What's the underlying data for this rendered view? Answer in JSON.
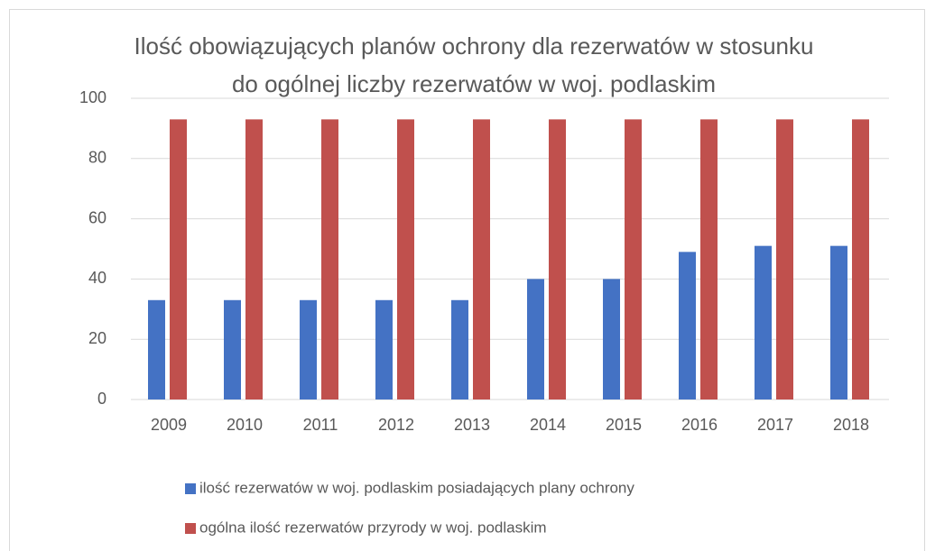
{
  "chart_data": {
    "type": "bar",
    "title": "Ilość obowiązujących planów ochrony dla rezerwatów w stosunku do ogólnej liczby rezerwatów w woj. podlaskim",
    "categories": [
      "2009",
      "2010",
      "2011",
      "2012",
      "2013",
      "2014",
      "2015",
      "2016",
      "2017",
      "2018"
    ],
    "series": [
      {
        "name": "ilość rezerwatów w woj. podlaskim posiadających plany ochrony",
        "color": "#4472c4",
        "values": [
          33,
          33,
          33,
          33,
          33,
          40,
          40,
          49,
          51,
          51
        ]
      },
      {
        "name": "ogólna ilość rezerwatów przyrody w woj. podlaskim",
        "color": "#c0504d",
        "values": [
          93,
          93,
          93,
          93,
          93,
          93,
          93,
          93,
          93,
          93
        ]
      }
    ],
    "ylim": [
      0,
      100
    ],
    "yticks": [
      0,
      20,
      40,
      60,
      80,
      100
    ],
    "grid": true,
    "legend": "bottom"
  }
}
